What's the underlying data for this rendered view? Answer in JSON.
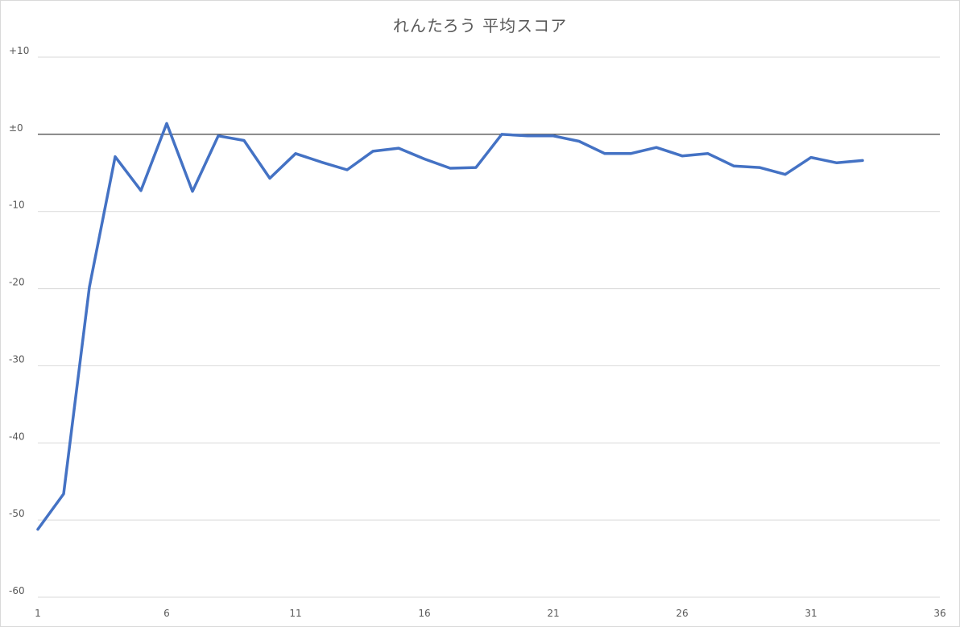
{
  "chart_data": {
    "type": "line",
    "title": "れんたろう 平均スコア",
    "xlabel": "",
    "ylabel": "",
    "xlim": [
      1,
      36
    ],
    "ylim": [
      -60,
      10
    ],
    "x_ticks": [
      1,
      6,
      11,
      16,
      21,
      26,
      31,
      36
    ],
    "y_ticks": [
      10,
      0,
      -10,
      -20,
      -30,
      -40,
      -50,
      -60
    ],
    "y_tick_labels": [
      "+10",
      "±0",
      "-10",
      "-20",
      "-30",
      "-40",
      "-50",
      "-60"
    ],
    "grid": true,
    "zero_line": true,
    "series": [
      {
        "color": "#4472c4",
        "x": [
          1,
          2,
          3,
          4,
          5,
          6,
          7,
          8,
          9,
          10,
          11,
          12,
          13,
          14,
          15,
          16,
          17,
          18,
          19,
          20,
          21,
          22,
          23,
          24,
          25,
          26,
          27,
          28,
          29,
          30,
          31,
          32,
          33
        ],
        "values": [
          -51.2,
          -46.6,
          -19.8,
          -2.9,
          -7.3,
          1.4,
          -7.4,
          -0.2,
          -0.8,
          -5.7,
          -2.5,
          -3.6,
          -4.6,
          -2.2,
          -1.8,
          -3.2,
          -4.4,
          -4.3,
          0.0,
          -0.2,
          -0.2,
          -0.9,
          -2.5,
          -2.5,
          -1.7,
          -2.8,
          -2.5,
          -4.1,
          -4.3,
          -5.2,
          -3.0,
          -3.7,
          -3.4
        ]
      }
    ]
  }
}
